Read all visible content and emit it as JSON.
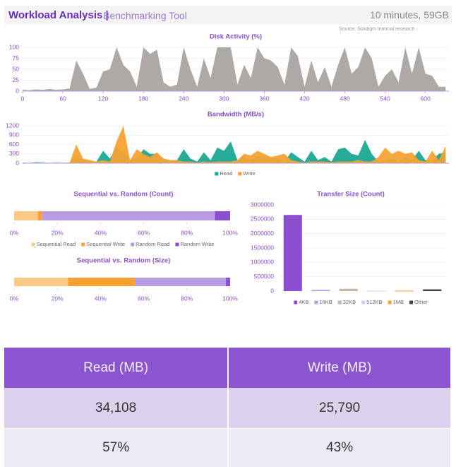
{
  "header": {
    "title": "Workload Analysis |",
    "subtitle": "Benchmarking Tool",
    "meta": "10 minutes, 59GB",
    "source": "Source: Solidigm Internal research"
  },
  "chart_data": [
    {
      "type": "area",
      "title": "Disk Activity (%)",
      "color": "#a8a4a2",
      "x": [
        0,
        10,
        20,
        30,
        40,
        50,
        60,
        70,
        80,
        90,
        100,
        110,
        120,
        130,
        140,
        150,
        160,
        170,
        180,
        190,
        200,
        210,
        220,
        230,
        240,
        250,
        260,
        270,
        280,
        290,
        300,
        310,
        320,
        330,
        340,
        350,
        360,
        370,
        380,
        390,
        400,
        410,
        420,
        430,
        440,
        450,
        460,
        470,
        480,
        490,
        500,
        510,
        520,
        530,
        540,
        550,
        560,
        570,
        580,
        590,
        600,
        610,
        620,
        630
      ],
      "values": [
        3,
        2,
        4,
        3,
        5,
        3,
        4,
        6,
        70,
        40,
        5,
        8,
        45,
        50,
        100,
        60,
        45,
        10,
        100,
        85,
        95,
        20,
        10,
        15,
        100,
        50,
        10,
        75,
        30,
        100,
        100,
        100,
        15,
        60,
        30,
        100,
        75,
        70,
        55,
        15,
        100,
        80,
        10,
        70,
        20,
        55,
        10,
        60,
        100,
        40,
        55,
        100,
        75,
        10,
        35,
        50,
        20,
        100,
        40,
        100,
        40,
        35,
        10,
        10
      ],
      "xlim": [
        0,
        635
      ],
      "xticks": [
        0,
        60,
        120,
        180,
        240,
        300,
        360,
        420,
        480,
        540,
        600
      ],
      "ylim": [
        0,
        100
      ],
      "yticks": [
        0,
        25,
        50,
        75,
        100
      ]
    },
    {
      "type": "area",
      "title": "Bandwidth (MB/s)",
      "x": [
        0,
        10,
        20,
        30,
        40,
        50,
        60,
        70,
        80,
        90,
        100,
        110,
        120,
        130,
        140,
        150,
        160,
        170,
        180,
        190,
        200,
        210,
        220,
        230,
        240,
        250,
        260,
        270,
        280,
        290,
        300,
        310,
        320,
        330,
        340,
        350,
        360,
        370,
        380,
        390,
        400,
        410,
        420,
        430,
        440,
        450,
        460,
        470,
        480,
        490,
        500,
        510,
        520,
        530,
        540,
        550,
        560,
        570,
        580,
        590,
        600,
        610,
        620,
        630
      ],
      "series": [
        {
          "name": "Read",
          "color": "#1aa894",
          "values": [
            20,
            10,
            30,
            20,
            10,
            20,
            15,
            20,
            250,
            100,
            60,
            50,
            400,
            150,
            500,
            350,
            80,
            150,
            450,
            300,
            300,
            100,
            80,
            100,
            450,
            150,
            50,
            350,
            100,
            500,
            400,
            700,
            100,
            200,
            100,
            250,
            200,
            150,
            150,
            50,
            350,
            200,
            50,
            400,
            100,
            200,
            50,
            450,
            500,
            300,
            250,
            750,
            300,
            50,
            100,
            150,
            50,
            200,
            100,
            400,
            100,
            100,
            300,
            350
          ]
        },
        {
          "name": "Write",
          "color": "#f7a230",
          "values": [
            0,
            0,
            0,
            0,
            0,
            0,
            0,
            20,
            600,
            150,
            100,
            50,
            100,
            50,
            700,
            1200,
            100,
            450,
            300,
            200,
            350,
            150,
            100,
            100,
            50,
            50,
            20,
            50,
            30,
            50,
            50,
            50,
            100,
            300,
            250,
            400,
            300,
            200,
            250,
            300,
            100,
            50,
            20,
            50,
            50,
            50,
            30,
            50,
            50,
            50,
            100,
            50,
            50,
            200,
            500,
            300,
            400,
            300,
            350,
            100,
            50,
            400,
            100,
            550
          ]
        }
      ],
      "xlim": [
        0,
        635
      ],
      "ylim": [
        0,
        1250
      ],
      "yticks": [
        0,
        300,
        600,
        900,
        1200
      ],
      "legend": "bottom"
    },
    {
      "type": "stacked_bar_h",
      "title": "Sequential vs. Random (Count)",
      "series": [
        {
          "name": "Sequential Read",
          "color": "#fcc886",
          "values": [
            11
          ]
        },
        {
          "name": "Sequential Write",
          "color": "#f8a131",
          "values": [
            2
          ]
        },
        {
          "name": "Random Read",
          "color": "#b99be2",
          "values": [
            80
          ]
        },
        {
          "name": "Random Write",
          "color": "#8c4fd0",
          "values": [
            7
          ]
        }
      ],
      "xlim": [
        0,
        100
      ],
      "xticks": [
        {
          "value": 0,
          "label": "0%"
        },
        {
          "value": 20,
          "label": "20%"
        },
        {
          "value": 40,
          "label": "40%"
        },
        {
          "value": 60,
          "label": "60%"
        },
        {
          "value": 80,
          "label": "80%"
        },
        {
          "value": 100,
          "label": "100%"
        }
      ],
      "legend": "bottom"
    },
    {
      "type": "stacked_bar_h",
      "title": "Sequential vs. Random (Size)",
      "series": [
        {
          "color": "#fcc886",
          "values": [
            25
          ]
        },
        {
          "color": "#f8a131",
          "values": [
            31
          ]
        },
        {
          "color": "#b99be2",
          "values": [
            42
          ]
        },
        {
          "color": "#8c4fd0",
          "values": [
            2
          ]
        }
      ],
      "xlim": [
        0,
        100
      ],
      "xticks": [
        {
          "value": 0,
          "label": "0%"
        },
        {
          "value": 20,
          "label": "20%"
        },
        {
          "value": 40,
          "label": "40%"
        },
        {
          "value": 60,
          "label": "60%"
        },
        {
          "value": 80,
          "label": "80%"
        },
        {
          "value": 100,
          "label": "100%"
        }
      ]
    },
    {
      "type": "bar",
      "title": "Transfer Size (Count)",
      "categories": [
        "4KB",
        "16KB",
        "32KB",
        "512KB",
        "1MB",
        "Other"
      ],
      "values": [
        2650000,
        40000,
        80000,
        10000,
        15000,
        60000
      ],
      "colors": [
        "#8c4fd0",
        "#b99be2",
        "#c7b6a8",
        "#d8c8f0",
        "#f8a131",
        "#444444"
      ],
      "ylim": [
        0,
        3000000
      ],
      "yticks": [
        0,
        500000,
        1000000,
        1500000,
        2000000,
        2500000,
        3000000
      ],
      "legend": "bottom"
    }
  ],
  "table": {
    "headers": [
      "Read (MB)",
      "Write (MB)"
    ],
    "rows": [
      [
        "34,108",
        "25,790"
      ],
      [
        "57%",
        "43%"
      ]
    ]
  }
}
